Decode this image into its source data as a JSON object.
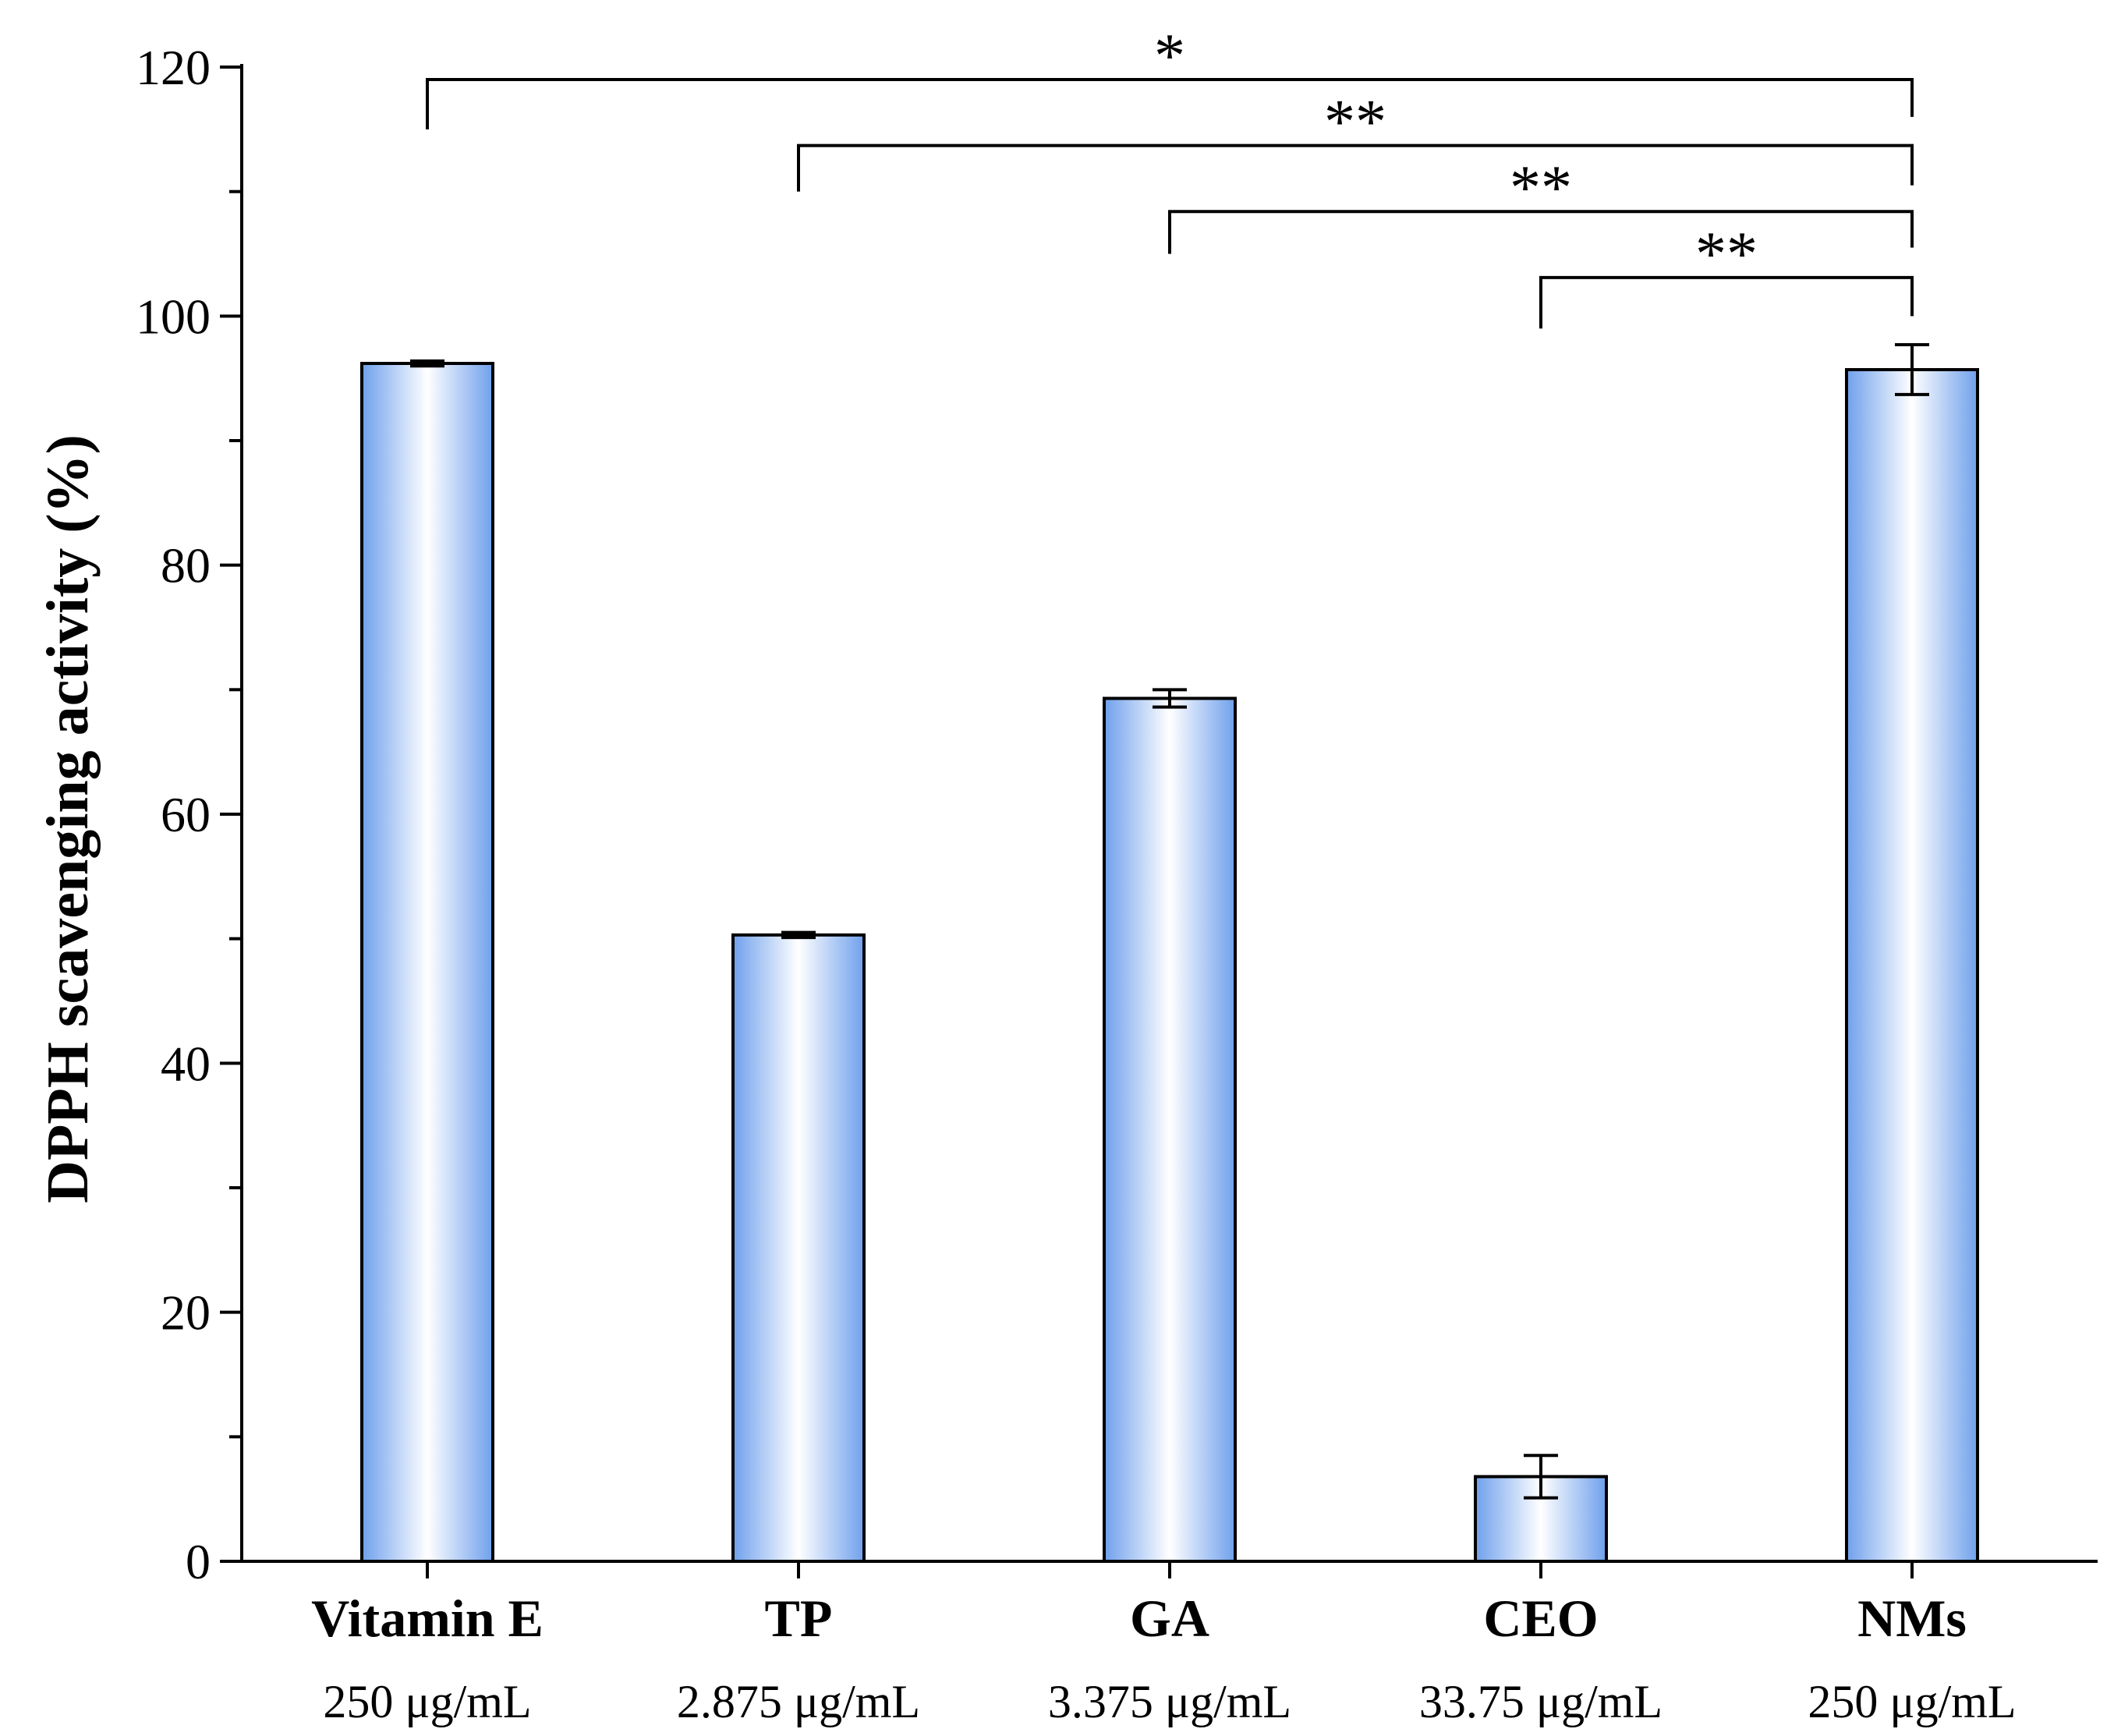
{
  "chart_data": {
    "type": "bar",
    "title": "",
    "xlabel": "",
    "ylabel": "DPPH scavenging activity (%)",
    "ylim": [
      0,
      120
    ],
    "yticks": [
      0,
      20,
      40,
      60,
      80,
      100,
      120
    ],
    "grid": false,
    "categories": [
      "Vitamin E",
      "TP",
      "GA",
      "CEO",
      "NMs"
    ],
    "concentrations": [
      "250 μg/mL",
      "2.875 μg/mL",
      "3.375 μg/mL",
      "33.75 μg/mL",
      "250 μg/mL"
    ],
    "values": [
      96.2,
      50.3,
      69.3,
      6.8,
      95.7
    ],
    "errors": [
      0.2,
      0.2,
      0.7,
      1.7,
      2.0
    ],
    "bar_colors": {
      "edge": "#6fa0ec",
      "center": "#ffffff",
      "outline": "#000000"
    },
    "significance": [
      {
        "from": 0,
        "to": 4,
        "y": 119,
        "left_drop": 115,
        "right_drop": 116,
        "label": "*"
      },
      {
        "from": 1,
        "to": 4,
        "y": 113.7,
        "left_drop": 110,
        "right_drop": 110.5,
        "label": "**"
      },
      {
        "from": 2,
        "to": 4,
        "y": 108.4,
        "left_drop": 105,
        "right_drop": 105.5,
        "label": "**"
      },
      {
        "from": 3,
        "to": 4,
        "y": 103.1,
        "left_drop": 99,
        "right_drop": 100,
        "label": "**"
      }
    ]
  }
}
